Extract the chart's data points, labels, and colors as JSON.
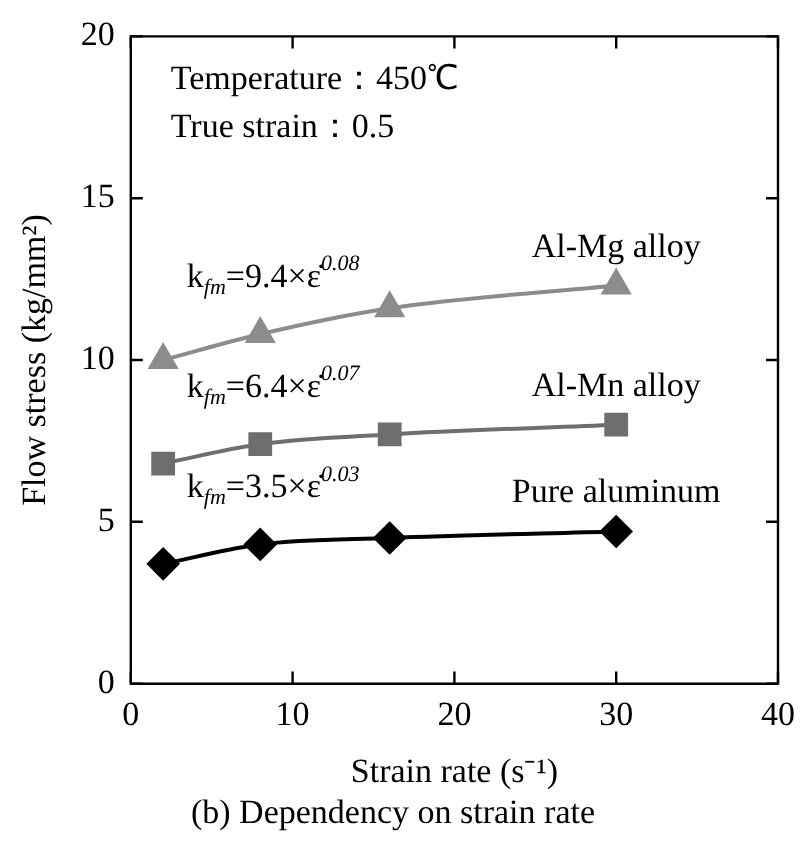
{
  "chart_data": {
    "type": "line",
    "title": "(b) Dependency on strain rate",
    "xlabel": "Strain rate (s⁻¹)",
    "ylabel": "Flow stress (kg/mm²)",
    "x": [
      2,
      8,
      16,
      30
    ],
    "series": [
      {
        "name": "Al-Mg alloy",
        "color": "#8c8c8c",
        "marker": "triangle",
        "values": [
          10.0,
          10.8,
          11.6,
          12.3
        ]
      },
      {
        "name": "Al-Mn alloy",
        "color": "#6e6e6e",
        "marker": "square",
        "values": [
          6.8,
          7.4,
          7.7,
          8.0
        ]
      },
      {
        "name": "Pure aluminum",
        "color": "#000000",
        "marker": "diamond",
        "values": [
          3.7,
          4.3,
          4.5,
          4.7
        ]
      }
    ],
    "annotations": [
      "Temperature：450℃",
      "True strain：0.5",
      "k$_{fm}$=9.4×ε̇$^{0.08}$",
      "k$_{fm}$=6.4×ε̇$^{0.07}$",
      "k$_{fm}$=3.5×ε̇$^{0.03}$"
    ],
    "xlim": [
      0,
      40
    ],
    "xticks": [
      0,
      10,
      20,
      30,
      40
    ],
    "ylim": [
      0,
      20
    ],
    "yticks": [
      0,
      5,
      10,
      15,
      20
    ],
    "grid": false,
    "line_style": "solid"
  }
}
